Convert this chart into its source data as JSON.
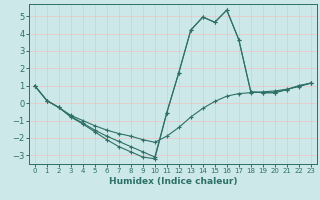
{
  "xlabel": "Humidex (Indice chaleur)",
  "background_color": "#cce8e8",
  "grid_color": "#e8c8c8",
  "line_color": "#2d7068",
  "xlim": [
    -0.5,
    23.5
  ],
  "ylim": [
    -3.5,
    5.7
  ],
  "xticks": [
    0,
    1,
    2,
    3,
    4,
    5,
    6,
    7,
    8,
    9,
    10,
    11,
    12,
    13,
    14,
    15,
    16,
    17,
    18,
    19,
    20,
    21,
    22,
    23
  ],
  "yticks": [
    -3,
    -2,
    -1,
    0,
    1,
    2,
    3,
    4,
    5
  ],
  "line1_x": [
    0,
    1,
    2,
    3,
    4,
    5,
    6,
    7,
    8,
    9,
    10,
    11,
    12,
    13,
    14,
    15,
    16,
    17,
    18,
    19,
    20,
    21,
    22,
    23
  ],
  "line1_y": [
    1.0,
    0.15,
    -0.25,
    -0.7,
    -1.0,
    -1.3,
    -1.55,
    -1.75,
    -1.9,
    -2.1,
    -2.25,
    -1.9,
    -1.4,
    -0.8,
    -0.3,
    0.1,
    0.4,
    0.55,
    0.6,
    0.65,
    0.7,
    0.8,
    0.95,
    1.15
  ],
  "line2_x": [
    0,
    1,
    2,
    3,
    4,
    5,
    6,
    7,
    8,
    9,
    10,
    11,
    12,
    13,
    14,
    15,
    16,
    17,
    18,
    19,
    20,
    21,
    22,
    23
  ],
  "line2_y": [
    1.0,
    0.15,
    -0.25,
    -0.75,
    -1.15,
    -1.55,
    -1.9,
    -2.2,
    -2.5,
    -2.8,
    -3.1,
    -0.55,
    1.75,
    4.2,
    4.95,
    4.65,
    5.35,
    3.65,
    0.65,
    0.6,
    0.6,
    0.78,
    1.0,
    1.15
  ],
  "line3_x": [
    0,
    1,
    2,
    3,
    4,
    5,
    6,
    7,
    8,
    9,
    10,
    11,
    12,
    13,
    14,
    15,
    16,
    17,
    18,
    19,
    20,
    21,
    22,
    23
  ],
  "line3_y": [
    1.0,
    0.15,
    -0.25,
    -0.8,
    -1.2,
    -1.65,
    -2.1,
    -2.5,
    -2.8,
    -3.1,
    -3.2,
    -0.55,
    1.75,
    4.2,
    4.95,
    4.65,
    5.35,
    3.65,
    0.65,
    0.6,
    0.6,
    0.78,
    1.0,
    1.15
  ]
}
